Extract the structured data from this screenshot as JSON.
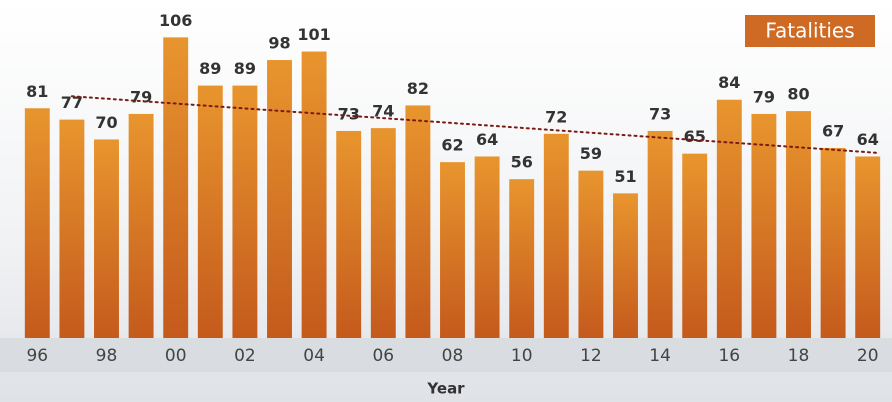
{
  "chart_data": {
    "type": "bar",
    "title": "Fatalities",
    "x_label": "Year",
    "categories": [
      "96",
      null,
      "98",
      null,
      "00",
      null,
      "02",
      null,
      "04",
      null,
      "06",
      null,
      "08",
      null,
      "10",
      null,
      "12",
      null,
      "14",
      null,
      "16",
      null,
      "18",
      null,
      "20"
    ],
    "values": [
      81,
      77,
      70,
      79,
      106,
      89,
      89,
      98,
      101,
      73,
      74,
      82,
      62,
      64,
      56,
      72,
      59,
      51,
      73,
      65,
      84,
      79,
      80,
      67,
      64
    ],
    "color": "#d9782a",
    "ylim": [
      0,
      110
    ],
    "trendline": true,
    "trendline_color": "#7a1a12"
  }
}
